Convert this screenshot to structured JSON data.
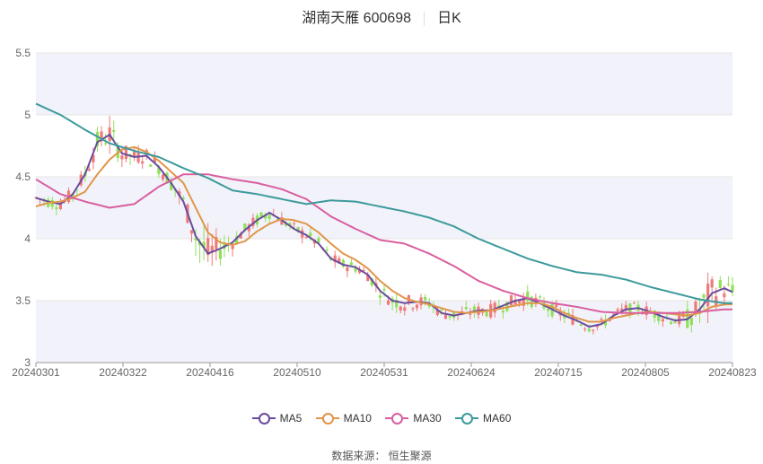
{
  "header": {
    "title": "湖南天雁 600698",
    "period": "日K"
  },
  "source_text": "数据来源： 恒生聚源",
  "colors": {
    "up": "#ef7a7a",
    "down": "#8fe05a",
    "MA5": "#6a4c9c",
    "MA10": "#e0964a",
    "MA30": "#d95fa0",
    "MA60": "#3d9a9c",
    "band": "#f2f3fa",
    "grid": "#e6e6e6"
  },
  "chart_data": {
    "type": "candlestick",
    "title": "湖南天雁 600698",
    "ylim": [
      3,
      5.5
    ],
    "y_ticks": [
      "3",
      "3.5",
      "4",
      "4.5",
      "5",
      "5.5"
    ],
    "x_ticks": [
      "20240301",
      "20240322",
      "20240416",
      "20240510",
      "20240531",
      "20240624",
      "20240715",
      "20240805",
      "20240823"
    ],
    "legend": [
      "MA5",
      "MA10",
      "MA30",
      "MA60"
    ],
    "series": [
      {
        "name": "MA5",
        "anchors": [
          [
            0,
            4.33
          ],
          [
            3,
            4.3
          ],
          [
            6,
            4.28
          ],
          [
            9,
            4.36
          ],
          [
            12,
            4.52
          ],
          [
            15,
            4.78
          ],
          [
            18,
            4.84
          ],
          [
            21,
            4.69
          ],
          [
            24,
            4.66
          ],
          [
            27,
            4.67
          ],
          [
            30,
            4.58
          ],
          [
            33,
            4.45
          ],
          [
            36,
            4.3
          ],
          [
            39,
            4.02
          ],
          [
            42,
            3.88
          ],
          [
            45,
            3.92
          ],
          [
            48,
            3.97
          ],
          [
            51,
            4.07
          ],
          [
            54,
            4.15
          ],
          [
            57,
            4.21
          ],
          [
            60,
            4.15
          ],
          [
            63,
            4.08
          ],
          [
            66,
            4.03
          ],
          [
            69,
            3.96
          ],
          [
            72,
            3.84
          ],
          [
            75,
            3.79
          ],
          [
            78,
            3.77
          ],
          [
            81,
            3.71
          ],
          [
            84,
            3.58
          ],
          [
            87,
            3.5
          ],
          [
            90,
            3.48
          ],
          [
            93,
            3.49
          ],
          [
            96,
            3.48
          ],
          [
            99,
            3.4
          ],
          [
            102,
            3.38
          ],
          [
            105,
            3.4
          ],
          [
            108,
            3.42
          ],
          [
            111,
            3.42
          ],
          [
            114,
            3.46
          ],
          [
            117,
            3.5
          ],
          [
            120,
            3.52
          ],
          [
            123,
            3.48
          ],
          [
            126,
            3.43
          ],
          [
            129,
            3.38
          ],
          [
            132,
            3.34
          ],
          [
            135,
            3.29
          ],
          [
            138,
            3.31
          ],
          [
            141,
            3.38
          ],
          [
            144,
            3.43
          ],
          [
            147,
            3.44
          ],
          [
            150,
            3.41
          ],
          [
            153,
            3.37
          ],
          [
            156,
            3.34
          ],
          [
            159,
            3.35
          ],
          [
            162,
            3.43
          ],
          [
            165,
            3.56
          ],
          [
            168,
            3.6
          ],
          [
            170,
            3.57
          ]
        ]
      },
      {
        "name": "MA10",
        "anchors": [
          [
            0,
            4.26
          ],
          [
            3,
            4.29
          ],
          [
            6,
            4.3
          ],
          [
            9,
            4.33
          ],
          [
            12,
            4.38
          ],
          [
            15,
            4.52
          ],
          [
            18,
            4.64
          ],
          [
            21,
            4.72
          ],
          [
            24,
            4.74
          ],
          [
            27,
            4.7
          ],
          [
            30,
            4.63
          ],
          [
            33,
            4.54
          ],
          [
            36,
            4.45
          ],
          [
            39,
            4.25
          ],
          [
            42,
            4.05
          ],
          [
            45,
            3.97
          ],
          [
            48,
            3.95
          ],
          [
            51,
            3.98
          ],
          [
            54,
            4.06
          ],
          [
            57,
            4.12
          ],
          [
            60,
            4.16
          ],
          [
            63,
            4.15
          ],
          [
            66,
            4.12
          ],
          [
            69,
            4.05
          ],
          [
            72,
            3.96
          ],
          [
            75,
            3.88
          ],
          [
            78,
            3.83
          ],
          [
            81,
            3.76
          ],
          [
            84,
            3.66
          ],
          [
            87,
            3.58
          ],
          [
            90,
            3.52
          ],
          [
            93,
            3.49
          ],
          [
            96,
            3.47
          ],
          [
            99,
            3.44
          ],
          [
            102,
            3.41
          ],
          [
            105,
            3.4
          ],
          [
            108,
            3.41
          ],
          [
            111,
            3.42
          ],
          [
            114,
            3.44
          ],
          [
            117,
            3.46
          ],
          [
            120,
            3.48
          ],
          [
            123,
            3.48
          ],
          [
            126,
            3.45
          ],
          [
            129,
            3.4
          ],
          [
            132,
            3.36
          ],
          [
            135,
            3.33
          ],
          [
            138,
            3.33
          ],
          [
            141,
            3.36
          ],
          [
            144,
            3.38
          ],
          [
            147,
            3.4
          ],
          [
            150,
            3.41
          ],
          [
            153,
            3.4
          ],
          [
            156,
            3.39
          ],
          [
            159,
            3.38
          ],
          [
            162,
            3.4
          ],
          [
            165,
            3.45
          ],
          [
            168,
            3.47
          ],
          [
            170,
            3.47
          ]
        ]
      },
      {
        "name": "MA30",
        "anchors": [
          [
            0,
            4.48
          ],
          [
            6,
            4.36
          ],
          [
            12,
            4.3
          ],
          [
            18,
            4.25
          ],
          [
            24,
            4.28
          ],
          [
            30,
            4.42
          ],
          [
            36,
            4.52
          ],
          [
            42,
            4.52
          ],
          [
            48,
            4.48
          ],
          [
            54,
            4.45
          ],
          [
            60,
            4.4
          ],
          [
            66,
            4.32
          ],
          [
            72,
            4.18
          ],
          [
            78,
            4.08
          ],
          [
            84,
            3.99
          ],
          [
            90,
            3.96
          ],
          [
            96,
            3.88
          ],
          [
            102,
            3.78
          ],
          [
            108,
            3.66
          ],
          [
            114,
            3.58
          ],
          [
            120,
            3.52
          ],
          [
            126,
            3.48
          ],
          [
            132,
            3.45
          ],
          [
            138,
            3.41
          ],
          [
            144,
            3.4
          ],
          [
            150,
            3.4
          ],
          [
            156,
            3.4
          ],
          [
            162,
            3.41
          ],
          [
            168,
            3.43
          ],
          [
            170,
            3.43
          ]
        ]
      },
      {
        "name": "MA60",
        "anchors": [
          [
            0,
            5.09
          ],
          [
            6,
            5.0
          ],
          [
            12,
            4.88
          ],
          [
            18,
            4.77
          ],
          [
            24,
            4.71
          ],
          [
            30,
            4.66
          ],
          [
            36,
            4.57
          ],
          [
            42,
            4.49
          ],
          [
            48,
            4.39
          ],
          [
            54,
            4.36
          ],
          [
            60,
            4.32
          ],
          [
            66,
            4.28
          ],
          [
            72,
            4.31
          ],
          [
            78,
            4.3
          ],
          [
            84,
            4.26
          ],
          [
            90,
            4.22
          ],
          [
            96,
            4.17
          ],
          [
            102,
            4.1
          ],
          [
            108,
            4.0
          ],
          [
            114,
            3.92
          ],
          [
            120,
            3.84
          ],
          [
            126,
            3.78
          ],
          [
            132,
            3.73
          ],
          [
            138,
            3.71
          ],
          [
            144,
            3.67
          ],
          [
            150,
            3.61
          ],
          [
            156,
            3.56
          ],
          [
            162,
            3.51
          ],
          [
            168,
            3.48
          ],
          [
            170,
            3.48
          ]
        ]
      }
    ],
    "candles_note": "daily OHLC candles sampled around the MA5 path",
    "volatility": [
      [
        0,
        0.09
      ],
      [
        10,
        0.12
      ],
      [
        18,
        0.22
      ],
      [
        24,
        0.12
      ],
      [
        36,
        0.14
      ],
      [
        40,
        0.32
      ],
      [
        48,
        0.12
      ],
      [
        60,
        0.1
      ],
      [
        80,
        0.1
      ],
      [
        90,
        0.14
      ],
      [
        100,
        0.1
      ],
      [
        120,
        0.12
      ],
      [
        140,
        0.09
      ],
      [
        156,
        0.1
      ],
      [
        164,
        0.28
      ],
      [
        170,
        0.16
      ]
    ]
  }
}
